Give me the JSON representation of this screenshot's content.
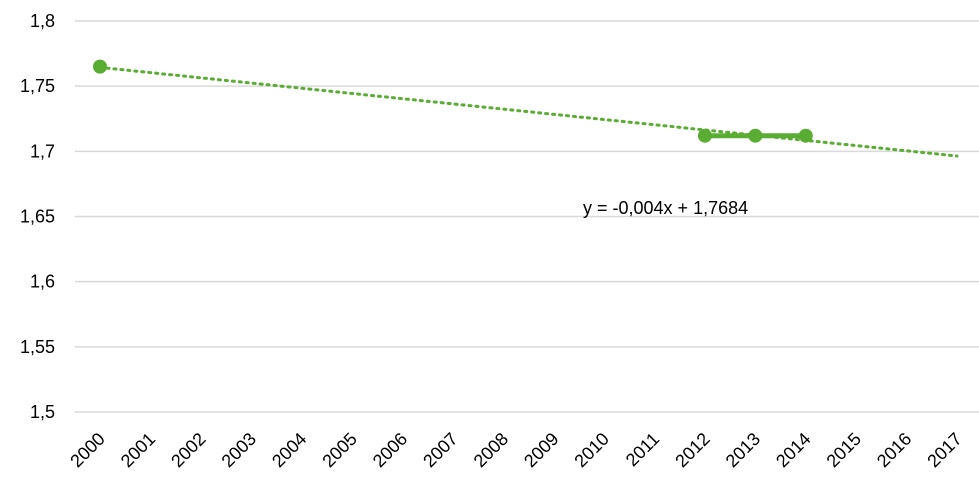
{
  "chart_data": {
    "type": "line",
    "title": "",
    "xlabel": "",
    "ylabel": "",
    "categories": [
      "2000",
      "2001",
      "2002",
      "2003",
      "2004",
      "2005",
      "2006",
      "2007",
      "2008",
      "2009",
      "2010",
      "2011",
      "2012",
      "2013",
      "2014",
      "2015",
      "2016",
      "2017"
    ],
    "series": [
      {
        "color": "#5aad33",
        "points": [
          {
            "x": "2000",
            "y": 1.765
          },
          {
            "x": "2012",
            "y": 1.712
          },
          {
            "x": "2013",
            "y": 1.712
          },
          {
            "x": "2014",
            "y": 1.712
          }
        ],
        "connected_from": "2012"
      }
    ],
    "trendline": {
      "style": "dotted",
      "color": "#5aad33",
      "slope": -0.004,
      "intercept": 1.7684,
      "from": "2000",
      "to": "2017",
      "equation_label": "y = -0,004x + 1,7684"
    },
    "y_ticks": [
      "1,5",
      "1,55",
      "1,6",
      "1,65",
      "1,7",
      "1,75",
      "1,8"
    ],
    "y_tick_values": [
      1.5,
      1.55,
      1.6,
      1.65,
      1.7,
      1.75,
      1.8
    ],
    "ylim": [
      1.5,
      1.8
    ],
    "grid": "horizontal",
    "legend": "none"
  }
}
